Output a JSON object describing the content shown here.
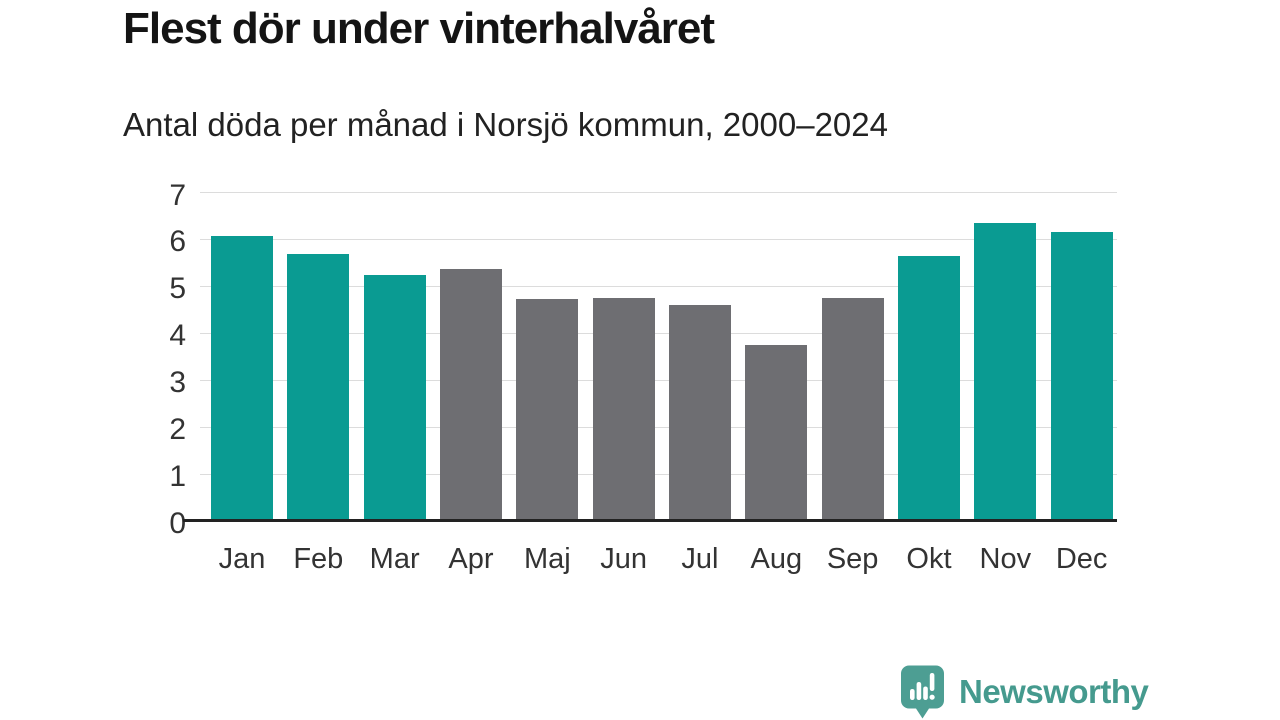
{
  "chart_data": {
    "type": "bar",
    "title": "Flest dör under vinterhalvåret",
    "subtitle": "Antal döda per månad i Norsjö kommun, 2000–2024",
    "categories": [
      "Jan",
      "Feb",
      "Mar",
      "Apr",
      "Maj",
      "Jun",
      "Jul",
      "Aug",
      "Sep",
      "Okt",
      "Nov",
      "Dec"
    ],
    "values": [
      6.08,
      5.68,
      5.24,
      5.36,
      4.72,
      4.76,
      4.6,
      3.76,
      4.76,
      5.64,
      6.36,
      6.16
    ],
    "bar_color_keys": [
      "winter",
      "winter",
      "winter",
      "summer",
      "summer",
      "summer",
      "summer",
      "summer",
      "summer",
      "winter",
      "winter",
      "winter"
    ],
    "palette": {
      "winter": "#0a9b92",
      "summer": "#6e6e72"
    },
    "xlabel": "",
    "ylabel": "",
    "ylim": [
      0,
      7
    ],
    "yticks": [
      0,
      1,
      2,
      3,
      4,
      5,
      6,
      7
    ],
    "grid": "horizontal gridlines on",
    "legend": "none",
    "colors": {
      "gridline": "#dcdcdc",
      "axis": "#222222",
      "tick_text": "#333333",
      "title_text": "#141414",
      "subtitle_text": "#222222"
    }
  },
  "footer": {
    "brand": "Newsworthy",
    "brand_color": "#459a8e",
    "icon": "newsworthy-speech-bubble-chart-icon",
    "icon_color": "#4d9e93"
  }
}
